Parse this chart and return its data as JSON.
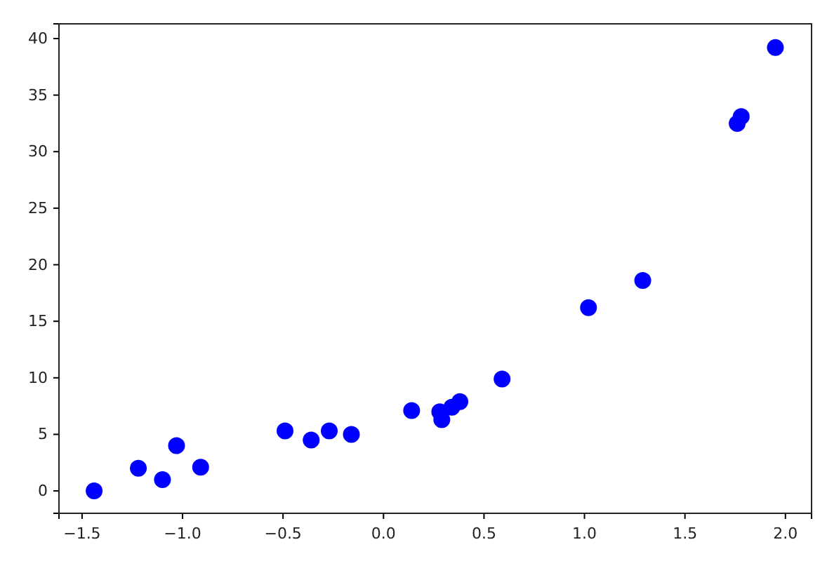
{
  "chart_data": {
    "type": "scatter",
    "marker": "circle",
    "grid": false,
    "xlim": [
      -1.615,
      2.13
    ],
    "ylim": [
      -1.98,
      41.3
    ],
    "xticks": [
      {
        "value": -1.5,
        "label": "−1.5"
      },
      {
        "value": -1.0,
        "label": "−1.0"
      },
      {
        "value": -0.5,
        "label": "−0.5"
      },
      {
        "value": 0,
        "label": "0.0"
      },
      {
        "value": 0.5,
        "label": "0.5"
      },
      {
        "value": 1.0,
        "label": "1.0"
      },
      {
        "value": 1.5,
        "label": "1.5"
      },
      {
        "value": 2.0,
        "label": "2.0"
      }
    ],
    "yticks": [
      0,
      5,
      10,
      15,
      20,
      25,
      30,
      35,
      40
    ],
    "series": [
      {
        "color": "#0000ff",
        "x": [
          -1.44,
          -1.22,
          -1.1,
          -1.03,
          -0.91,
          -0.49,
          -0.36,
          -0.27,
          -0.16,
          0.14,
          0.28,
          0.29,
          0.34,
          0.38,
          0.59,
          1.02,
          1.29,
          1.76,
          1.78,
          1.95
        ],
        "values": [
          0,
          2.0,
          1.0,
          4.0,
          2.1,
          5.3,
          4.5,
          5.3,
          5.0,
          7.1,
          7.0,
          6.3,
          7.4,
          7.9,
          9.9,
          16.2,
          18.6,
          32.5,
          33.1,
          39.2
        ]
      }
    ]
  }
}
